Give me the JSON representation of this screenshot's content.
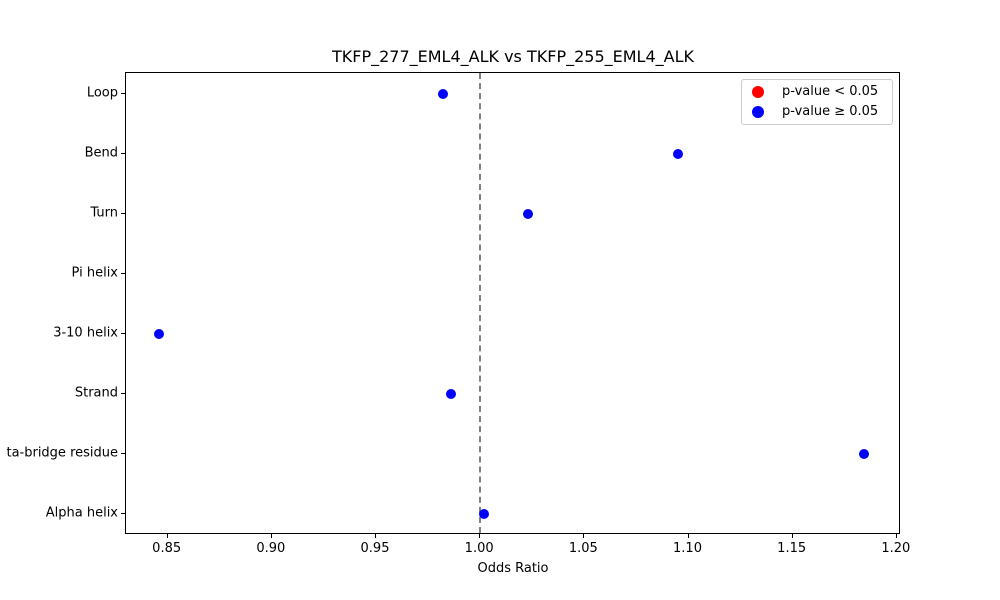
{
  "chart_data": {
    "type": "scatter",
    "title": "TKFP_277_EML4_ALK vs TKFP_255_EML4_ALK",
    "xlabel": "Odds Ratio",
    "ylabel": "",
    "xlim": [
      0.83,
      1.202
    ],
    "x_ticks": [
      "0.85",
      "0.90",
      "0.95",
      "1.00",
      "1.05",
      "1.10",
      "1.15",
      "1.20"
    ],
    "categories": [
      "Loop",
      "Bend",
      "Turn",
      "Pi helix",
      "3-10 helix",
      "Strand",
      "Beta-bridge residue",
      "Alpha helix"
    ],
    "y_tick_labels_visible": [
      "Loop",
      "Bend",
      "Turn",
      "Pi helix",
      "3-10 helix",
      "Strand",
      "ta-bridge residue",
      "Alpha helix"
    ],
    "series": [
      {
        "name": "p-value < 0.05",
        "color": "#ff0000",
        "values": [
          null,
          null,
          null,
          null,
          null,
          null,
          null,
          null
        ]
      },
      {
        "name": "p-value ≥ 0.05",
        "color": "#0000ff",
        "values": [
          0.982,
          1.095,
          1.023,
          null,
          0.846,
          0.986,
          1.184,
          1.002
        ]
      }
    ],
    "reference_line": {
      "x": 1.0,
      "style": "dashed",
      "color": "#808080"
    },
    "legend_position": "upper right",
    "grid": false
  },
  "legend": [
    {
      "label": "p-value < 0.05",
      "color": "#ff0000"
    },
    {
      "label": "p-value ≥ 0.05",
      "color": "#0000ff"
    }
  ]
}
